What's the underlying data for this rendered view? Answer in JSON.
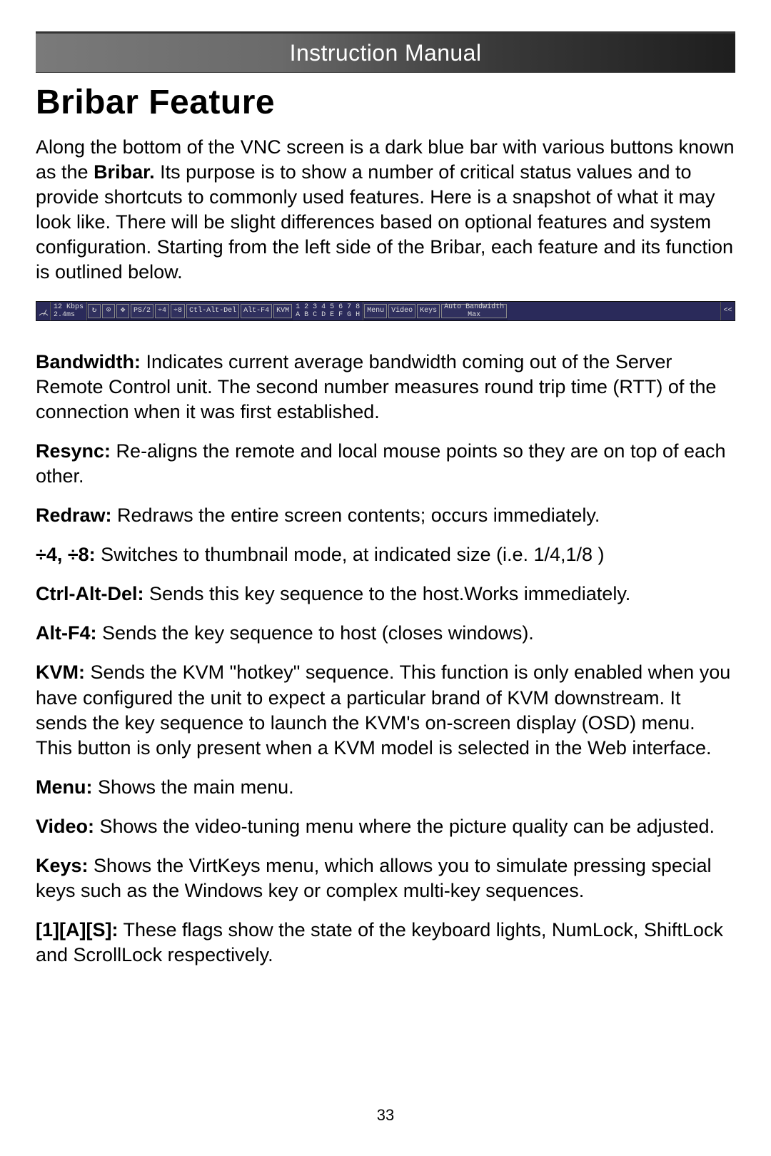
{
  "page_number": "33",
  "header": {
    "title": "Instruction Manual"
  },
  "section_title": "Bribar Feature",
  "intro_html": "Along the bottom of the VNC screen is a dark blue bar with various buttons known as the <strong>Bribar.</strong> Its purpose is to show a number of critical status values and to provide shortcuts to commonly used features. Here is a snapshot of what it may look like. There will be slight differences based on optional features and system configuration. Starting from the left side of the Bribar, each feature and its function is outlined below.",
  "bribar": {
    "background": "#2a2a5a",
    "text_color": "#dddddd",
    "bandwidth_top": "12 Kbps",
    "bandwidth_bottom": "2.4ms",
    "icons": {
      "resync": "↻",
      "redraw": "⊙",
      "move": "✥"
    },
    "buttons": {
      "ps2": "PS/2",
      "div4": "÷4",
      "div8": "÷8",
      "cad": "Ctl-Alt-Del",
      "altf4": "Alt-F4",
      "kvm": "KVM",
      "menu": "Menu",
      "video": "Video",
      "keys": "Keys",
      "auto_top": "Auto Bandwidth",
      "auto_bottom": "Max"
    },
    "numrow_top": "1 2 3 4 5 6 7 8",
    "numrow_bottom": "  A B C D E F G H",
    "chevron": "<<"
  },
  "definitions": [
    {
      "term": "Bandwidth:",
      "text": " Indicates current average bandwidth coming out of the Server Remote Control unit. The second number measures round trip time (RTT) of the connection when it was first established."
    },
    {
      "term": "Resync:",
      "text": " Re-aligns the remote and local mouse points so they are on top of each other."
    },
    {
      "term": "Redraw:",
      "text": " Redraws the entire screen contents; occurs immediately."
    },
    {
      "term": "÷4, ÷8:",
      "text": " Switches to thumbnail mode, at indicated size (i.e. 1/4,1/8 )"
    },
    {
      "term": "Ctrl-Alt-Del:",
      "text": " Sends this key sequence to the host.Works immediately."
    },
    {
      "term": "Alt-F4:",
      "text": " Sends the key sequence to host (closes windows)."
    },
    {
      "term": "KVM:",
      "text": " Sends the KVM \"hotkey\" sequence. This function is only enabled when you have configured the unit to expect a particular brand of KVM downstream. It sends the key sequence to launch the KVM's on-screen display (OSD) menu. This button is only present when a KVM model is selected in the Web interface."
    },
    {
      "term": "Menu:",
      "text": " Shows the main menu."
    },
    {
      "term": "Video:",
      "text": " Shows the video-tuning menu where the picture quality can be adjusted."
    },
    {
      "term": "Keys:",
      "text": " Shows the VirtKeys menu, which allows you to simulate pressing special keys such as the Windows key or complex multi-key sequences."
    },
    {
      "term": "[1][A][S]:",
      "text": " These flags show the state of the keyboard lights, NumLock, ShiftLock and ScrollLock respectively."
    }
  ]
}
